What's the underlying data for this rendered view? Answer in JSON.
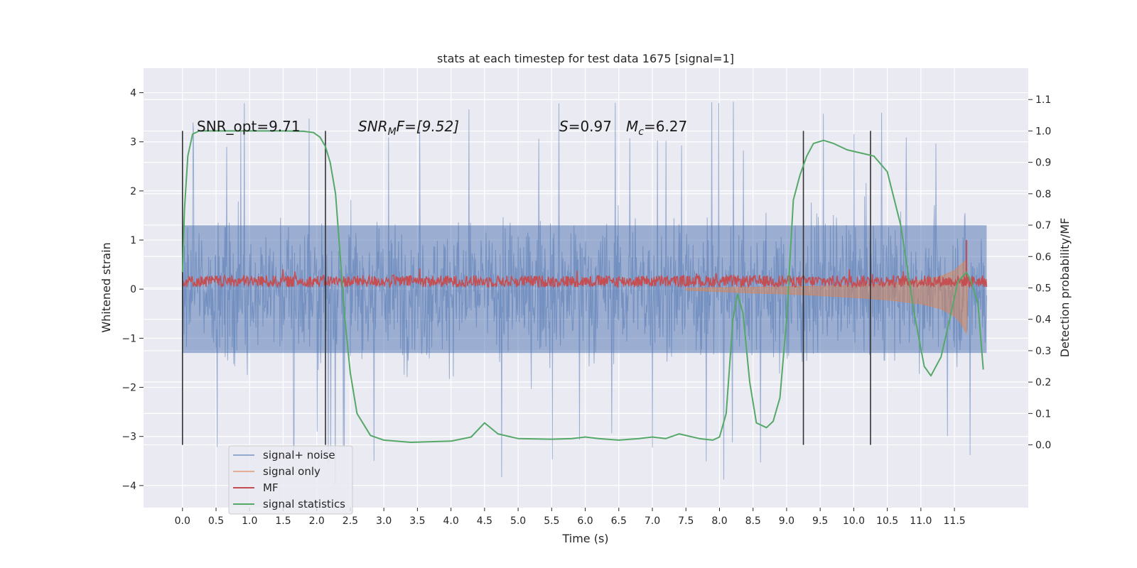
{
  "chart_data": {
    "type": "line",
    "title": "stats at each timestep for test data 1675 [signal=1]",
    "xlabel": "Time (s)",
    "ylabel": "Whitened strain",
    "ylabel_right": "Detection probability/MF",
    "xlim": [
      -0.58,
      12.6
    ],
    "ylim": [
      -4.45,
      4.5
    ],
    "ylim_right": [
      -0.2,
      1.2
    ],
    "x_ticks": [
      "0.0",
      "0.5",
      "1.0",
      "1.5",
      "2.0",
      "2.5",
      "3.0",
      "3.5",
      "4.0",
      "4.5",
      "5.0",
      "5.5",
      "6.0",
      "6.5",
      "7.0",
      "7.5",
      "8.0",
      "8.5",
      "9.0",
      "9.5",
      "10.0",
      "10.5",
      "11.0",
      "11.5"
    ],
    "y_ticks": [
      "4",
      "3",
      "2",
      "1",
      "0",
      "−1",
      "−2",
      "−3",
      "−4"
    ],
    "y_ticks_right": [
      "1.1",
      "1.0",
      "0.9",
      "0.8",
      "0.7",
      "0.6",
      "0.5",
      "0.4",
      "0.3",
      "0.2",
      "0.1",
      "0.0"
    ],
    "grid": true,
    "legend_placement": "lower-left",
    "annotations": {
      "snr_opt": "SNR_opt=9.71",
      "snr_mf_sym": "SNR",
      "snr_mf_sub": "M",
      "snr_mf_rest": "F=[9.52]",
      "s_sym": "S",
      "s_rest": "=0.97",
      "mc_sym": "M",
      "mc_sub": "c",
      "mc_rest": "=6.27"
    },
    "vertical_markers": [
      0.0,
      2.13,
      9.25,
      10.25
    ],
    "noise_envelope": {
      "x_range": [
        0.0,
        11.98
      ],
      "core_band": [
        -1.3,
        1.3
      ],
      "typical_peak": 2.6,
      "max_peak": 4.1,
      "min_peak": -4.1
    },
    "signal_only": {
      "x": [
        7.5,
        8.0,
        8.5,
        9.0,
        9.5,
        10.0,
        10.5,
        11.0,
        11.3,
        11.5,
        11.6,
        11.68,
        11.7
      ],
      "upper": [
        0.02,
        0.03,
        0.04,
        0.05,
        0.06,
        0.08,
        0.11,
        0.18,
        0.26,
        0.38,
        0.5,
        0.6,
        0.0
      ],
      "lower": [
        -0.02,
        -0.05,
        -0.08,
        -0.1,
        -0.13,
        -0.17,
        -0.22,
        -0.3,
        -0.4,
        -0.55,
        -0.7,
        -0.9,
        0.0
      ]
    },
    "mf": {
      "x_range": [
        0.0,
        11.98
      ],
      "baseline": 0.16,
      "amplitude": 0.12,
      "spike": {
        "x": 11.68,
        "y": 1.0
      }
    },
    "series": [
      {
        "name": "signal statistics",
        "axis": "right",
        "x": [
          0.0,
          0.03,
          0.08,
          0.15,
          0.25,
          0.5,
          1.0,
          1.5,
          1.8,
          1.95,
          2.05,
          2.13,
          2.2,
          2.28,
          2.35,
          2.42,
          2.5,
          2.6,
          2.8,
          3.0,
          3.4,
          4.0,
          4.3,
          4.5,
          4.7,
          5.0,
          5.5,
          5.8,
          6.0,
          6.2,
          6.5,
          6.8,
          7.0,
          7.2,
          7.4,
          7.7,
          7.9,
          8.0,
          8.1,
          8.2,
          8.27,
          8.35,
          8.45,
          8.55,
          8.7,
          8.8,
          8.9,
          9.0,
          9.1,
          9.2,
          9.3,
          9.4,
          9.55,
          9.7,
          9.9,
          10.1,
          10.3,
          10.5,
          10.7,
          10.9,
          11.05,
          11.15,
          11.3,
          11.45,
          11.55,
          11.68,
          11.75,
          11.85,
          11.93
        ],
        "values": [
          0.55,
          0.75,
          0.92,
          0.99,
          1.0,
          1.0,
          1.0,
          1.0,
          0.999,
          0.995,
          0.98,
          0.95,
          0.9,
          0.8,
          0.6,
          0.4,
          0.23,
          0.1,
          0.03,
          0.015,
          0.008,
          0.012,
          0.025,
          0.07,
          0.035,
          0.02,
          0.018,
          0.02,
          0.025,
          0.02,
          0.015,
          0.02,
          0.025,
          0.02,
          0.035,
          0.02,
          0.015,
          0.025,
          0.1,
          0.4,
          0.48,
          0.42,
          0.2,
          0.07,
          0.055,
          0.075,
          0.15,
          0.4,
          0.78,
          0.86,
          0.92,
          0.96,
          0.97,
          0.96,
          0.94,
          0.93,
          0.92,
          0.87,
          0.7,
          0.42,
          0.25,
          0.22,
          0.28,
          0.42,
          0.52,
          0.55,
          0.52,
          0.45,
          0.24
        ]
      },
      {
        "name": "signal+ noise"
      },
      {
        "name": "signal only"
      },
      {
        "name": "MF"
      }
    ],
    "colors": {
      "noise": "#4c72b0",
      "signal_only": "#dd8452",
      "mf": "#c44e52",
      "stats": "#55a868",
      "marker": "#333333",
      "background": "#eaeaf2",
      "grid": "#ffffff"
    }
  }
}
